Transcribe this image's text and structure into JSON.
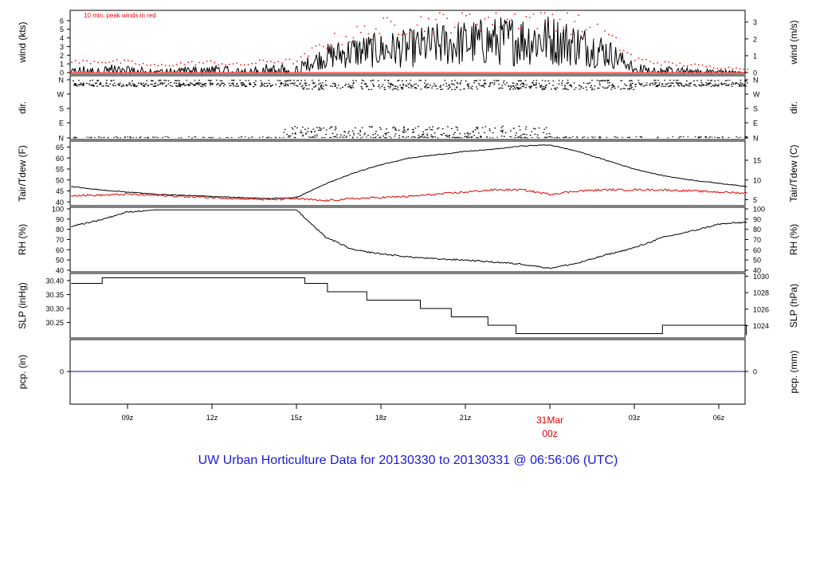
{
  "title": "UW Urban Horticulture Data for 20130330  to  20130331 @ 06:56:06  (UTC)",
  "colors": {
    "title": "#1a1ad8",
    "peak": "#ff0000",
    "temp": "#e00000",
    "line": "#000000",
    "pcp": "#0000cc",
    "date_label": "#e00000"
  },
  "x_axis": {
    "ticks": [
      "09z",
      "12z",
      "15z",
      "18z",
      "21z",
      "00z",
      "03z",
      "06z"
    ],
    "date_label": "31Mar",
    "date_label_hour": "00z",
    "hour_start": 7.0,
    "hour_end": 31.0
  },
  "chart_data": [
    {
      "type": "line",
      "panel": "wind",
      "ylabel": "wind (kts)",
      "ylabel_right": "wind (m/s)",
      "annotation": "10 min. peak winds in red",
      "ylim": [
        0,
        7
      ],
      "yticks": [
        "0",
        "1",
        "2",
        "3",
        "4",
        "5",
        "6"
      ],
      "yticks_right": [
        "0",
        "1",
        "2",
        "3"
      ],
      "series": [
        {
          "x": [
            7,
            8,
            9,
            10,
            11,
            12,
            13,
            14,
            15,
            16,
            17,
            18,
            19,
            20,
            21,
            22,
            23,
            24,
            25,
            26,
            27,
            28,
            29,
            30,
            31
          ],
          "values": [
            0.3,
            0.6,
            0.5,
            0.2,
            0.4,
            0.5,
            0.3,
            0.6,
            0.5,
            1.8,
            2.4,
            2.6,
            2.8,
            3.2,
            3.4,
            3.6,
            3.8,
            3.8,
            3.2,
            2.4,
            0.6,
            0.4,
            0.3,
            0.2,
            0.1
          ]
        },
        {
          "name": "10 min. peak winds in red",
          "x": [
            7,
            8,
            9,
            10,
            11,
            12,
            13,
            14,
            15,
            16,
            17,
            18,
            19,
            20,
            21,
            22,
            23,
            24,
            25,
            26,
            27,
            28,
            29,
            30,
            31
          ],
          "values": [
            1.2,
            1.4,
            1.2,
            0.8,
            1.1,
            1.2,
            0.9,
            1.4,
            1.3,
            3.5,
            4.5,
            5.3,
            5.8,
            6.0,
            6.2,
            6.3,
            6.4,
            6.6,
            5.6,
            4.4,
            1.6,
            1.1,
            0.9,
            0.6,
            0.5
          ]
        }
      ]
    },
    {
      "type": "scatter",
      "panel": "direction",
      "ylabel": "dir.",
      "ylabel_right": "dir.",
      "yticks": [
        "N",
        "E",
        "S",
        "W",
        "N"
      ],
      "clusters": [
        {
          "label": "N-NW",
          "x_range": [
            7.0,
            31.0
          ],
          "deg_range": [
            300,
            345
          ]
        },
        {
          "label": "N-NE",
          "x_range": [
            14.5,
            24.0
          ],
          "deg_range": [
            5,
            75
          ]
        }
      ]
    },
    {
      "type": "line",
      "panel": "temperature",
      "ylabel": "Tair/Tdew (F)",
      "ylabel_right": "Tair/Tdew (C)",
      "ylim": [
        39,
        67
      ],
      "yticks": [
        "40",
        "45",
        "50",
        "55",
        "60",
        "65"
      ],
      "yticks_right": [
        "5",
        "10",
        "15"
      ],
      "series": [
        {
          "name": "Tair",
          "x": [
            7,
            8,
            9,
            10,
            11,
            12,
            13,
            14,
            15,
            16,
            17,
            18,
            19,
            20,
            21,
            22,
            23,
            24,
            25,
            26,
            27,
            28,
            29,
            30,
            31
          ],
          "values": [
            47,
            45.5,
            44.5,
            43.5,
            43,
            42.5,
            42,
            41.5,
            42,
            48,
            53,
            57,
            60,
            61.5,
            63,
            64,
            65.5,
            66,
            63,
            59,
            55,
            52,
            50,
            48.5,
            47
          ]
        },
        {
          "name": "Tdew",
          "x": [
            7,
            8,
            9,
            10,
            11,
            12,
            13,
            14,
            15,
            16,
            17,
            18,
            19,
            20,
            21,
            22,
            23,
            24,
            25,
            26,
            27,
            28,
            29,
            30,
            31
          ],
          "values": [
            43,
            43,
            43.5,
            43,
            42.5,
            42,
            41.5,
            41,
            41.5,
            40.5,
            41.5,
            42,
            42.5,
            43.5,
            44.5,
            45.5,
            45.5,
            43.5,
            45,
            45.5,
            45.5,
            45.5,
            45,
            44.5,
            44
          ]
        }
      ]
    },
    {
      "type": "line",
      "panel": "humidity",
      "ylabel": "RH (%)",
      "ylabel_right": "RH (%)",
      "ylim": [
        40,
        100
      ],
      "yticks": [
        "40",
        "50",
        "60",
        "70",
        "80",
        "90",
        "100"
      ],
      "series": [
        {
          "name": "RH",
          "x": [
            7,
            8,
            9,
            10,
            11,
            12,
            13,
            14,
            15,
            16,
            17,
            18,
            19,
            20,
            21,
            22,
            23,
            24,
            25,
            26,
            27,
            28,
            29,
            30,
            31
          ],
          "values": [
            83,
            89,
            97,
            99,
            99,
            99,
            99,
            99,
            99,
            73,
            60,
            56,
            53,
            51,
            50,
            48,
            46,
            42,
            47,
            55,
            62,
            72,
            78,
            85,
            87
          ]
        }
      ]
    },
    {
      "type": "line",
      "panel": "pressure",
      "ylabel": "SLP (inHg)",
      "ylabel_right": "SLP (hPa)",
      "ylim": [
        30.2,
        30.42
      ],
      "yticks": [
        "30.25",
        "30.30",
        "30.35",
        "30.40"
      ],
      "yticks_right": [
        "1024",
        "1026",
        "1028",
        "1030"
      ],
      "steps": [
        {
          "x": 7.0,
          "value": 30.39
        },
        {
          "x": 8.1,
          "value": 30.41
        },
        {
          "x": 15.3,
          "value": 30.39
        },
        {
          "x": 16.1,
          "value": 30.36
        },
        {
          "x": 17.5,
          "value": 30.33
        },
        {
          "x": 19.4,
          "value": 30.3
        },
        {
          "x": 20.5,
          "value": 30.27
        },
        {
          "x": 21.8,
          "value": 30.24
        },
        {
          "x": 22.8,
          "value": 30.21
        },
        {
          "x": 28.0,
          "value": 30.24
        },
        {
          "x": 31.0,
          "value": 30.24
        }
      ]
    },
    {
      "type": "line",
      "panel": "precipitation",
      "ylabel": "pcp. (in)",
      "ylabel_right": "pcp. (mm)",
      "yticks": [
        "0"
      ],
      "yticks_right": [
        "0"
      ],
      "series": [
        {
          "name": "pcp",
          "x": [
            7,
            31
          ],
          "values": [
            0,
            0
          ]
        }
      ]
    }
  ]
}
